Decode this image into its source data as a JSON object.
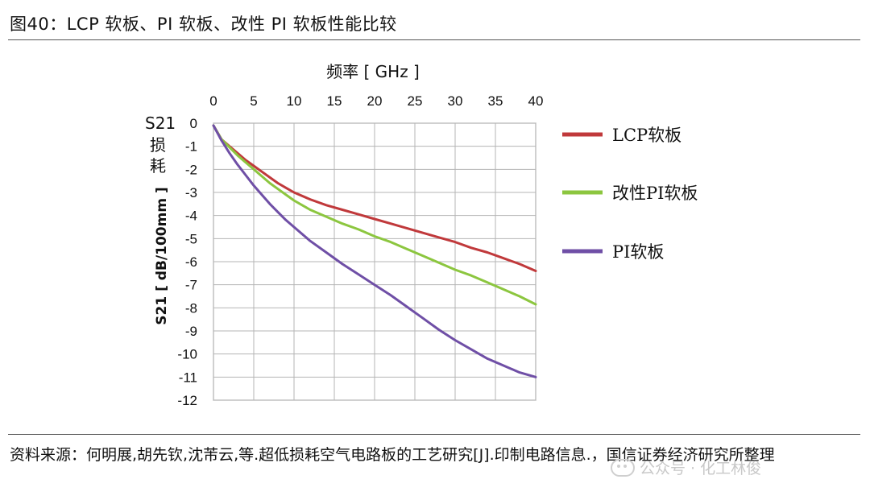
{
  "figure_title": "图40：LCP 软板、PI 软板、改性 PI 软板性能比较",
  "source_text": "资料来源：何明展,胡先钦,沈芾云,等.超低损耗空气电路板的工艺研究[J].印制电路信息.，国信证券经济研究所整理",
  "watermark": "公众号 · 化工林俊",
  "chart_data": {
    "type": "line",
    "xlabel": "频率   [ GHz ]",
    "ylabel": "S21 [ dB/100mm ]",
    "ylabel_top": "S21",
    "ylabel_chars": [
      "损",
      "耗"
    ],
    "xlim": [
      0,
      40
    ],
    "ylim": [
      -12,
      0
    ],
    "xticks": [
      "0",
      "5",
      "10",
      "15",
      "20",
      "25",
      "30",
      "35",
      "40"
    ],
    "yticks": [
      "0",
      "-1",
      "-2",
      "-3",
      "-4",
      "-5",
      "-6",
      "-7",
      "-8",
      "-9",
      "-10",
      "-11",
      "-12"
    ],
    "grid": true,
    "legend_position": "right",
    "x": [
      0,
      1,
      2,
      3,
      4,
      5,
      6,
      7,
      8,
      9,
      10,
      12,
      14,
      16,
      18,
      20,
      22,
      24,
      26,
      28,
      30,
      32,
      34,
      36,
      38,
      40
    ],
    "series": [
      {
        "name": "LCP软板",
        "color": "#c0393b",
        "values": [
          -0.1,
          -0.7,
          -1.0,
          -1.3,
          -1.6,
          -1.85,
          -2.1,
          -2.35,
          -2.6,
          -2.8,
          -3.0,
          -3.3,
          -3.55,
          -3.75,
          -3.95,
          -4.15,
          -4.35,
          -4.55,
          -4.75,
          -4.95,
          -5.15,
          -5.4,
          -5.6,
          -5.85,
          -6.1,
          -6.4
        ]
      },
      {
        "name": "改性PI软板",
        "color": "#8cc63f",
        "values": [
          -0.1,
          -0.7,
          -1.05,
          -1.4,
          -1.7,
          -2.0,
          -2.3,
          -2.6,
          -2.85,
          -3.1,
          -3.35,
          -3.75,
          -4.05,
          -4.35,
          -4.6,
          -4.9,
          -5.15,
          -5.45,
          -5.75,
          -6.05,
          -6.35,
          -6.6,
          -6.9,
          -7.2,
          -7.5,
          -7.85
        ]
      },
      {
        "name": "PI软板",
        "color": "#6f4fa6",
        "values": [
          -0.1,
          -0.75,
          -1.3,
          -1.8,
          -2.25,
          -2.7,
          -3.1,
          -3.5,
          -3.85,
          -4.2,
          -4.5,
          -5.1,
          -5.6,
          -6.1,
          -6.55,
          -7.0,
          -7.45,
          -7.95,
          -8.45,
          -8.95,
          -9.4,
          -9.8,
          -10.2,
          -10.5,
          -10.8,
          -11.0
        ]
      }
    ]
  }
}
